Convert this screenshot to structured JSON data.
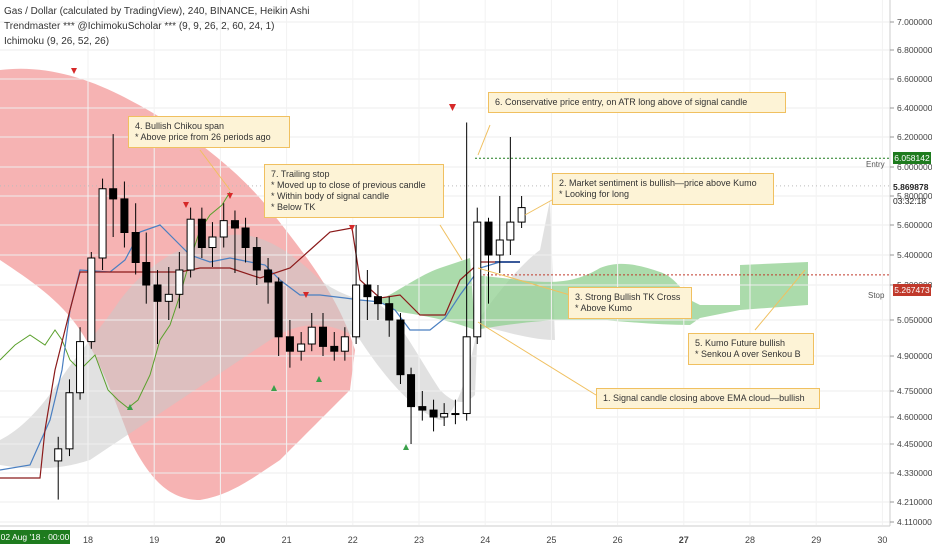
{
  "header": {
    "title": "Gas / Dollar (calculated by TradingView), 240, BINANCE, Heikin Ashi",
    "indicator1": "Trendmaster *** @IchimokuScholar *** (9, 9, 26, 2, 60, 24, 1)",
    "indicator2": "Ichimoku (9, 26, 52, 26)"
  },
  "price_axis": {
    "labels": [
      "7.000000",
      "6.800000",
      "6.600000",
      "6.400000",
      "6.200000",
      "6.000000",
      "5.800000",
      "5.600000",
      "5.400000",
      "5.200000",
      "5.050000",
      "4.900000",
      "4.750000",
      "4.600000",
      "4.450000",
      "4.330000",
      "4.210000",
      "4.110000"
    ],
    "entry_price": "6.058142",
    "current_price": "5.869878",
    "countdown": "03:32:18",
    "stop_price": "5.267473",
    "entry_label": "Entry",
    "stop_label": "Stop"
  },
  "time_axis": {
    "labels": [
      "18",
      "19",
      "20",
      "21",
      "22",
      "23",
      "24",
      "25",
      "26",
      "27",
      "28",
      "29",
      "30"
    ],
    "bold_labels": [
      "20",
      "27"
    ],
    "cursor_date": "02 Aug '18 · 00:00"
  },
  "annotations": [
    {
      "id": "note-1",
      "text": "1. Signal candle closing above EMA cloud—bullish"
    },
    {
      "id": "note-2",
      "text": "2. Market sentiment is bullish—price above Kumo\n* Looking for long"
    },
    {
      "id": "note-3",
      "text": "3. Strong Bullish TK Cross\n* Above Kumo"
    },
    {
      "id": "note-4",
      "text": "4. Bullish Chikou span\n* Above price from 26 periods ago"
    },
    {
      "id": "note-5",
      "text": "5. Kumo Future bullish\n* Senkou A over Senkou B"
    },
    {
      "id": "note-6",
      "text": "6. Conservative price entry, on ATR long above of signal candle"
    },
    {
      "id": "note-7",
      "text": "7. Trailing stop\n* Moved up to close of previous candle\n* Within body of signal candle\n* Below TK"
    }
  ],
  "colors": {
    "bull_candle": "#ffffff",
    "bear_candle": "#000000",
    "kumo_bear": "#f4a0a0",
    "kumo_bull": "#8fcf8f",
    "ema_cloud": "#c8c8c8",
    "tenkan": "#4a7fc1",
    "kijun": "#8b1a1a",
    "chikou": "#5aa02c",
    "entry_line": "#1e7b1e",
    "stop_line": "#c0392b",
    "note_bg": "#fdf3d6",
    "note_border": "#f0c060"
  },
  "chart_data": {
    "type": "candlestick",
    "title": "Gas / Dollar (calculated by TradingView), 240, BINANCE, Heikin Ashi",
    "x_unit": "day (Aug 2018)",
    "ylim": [
      4.11,
      7.0
    ],
    "candles": [
      {
        "x": 17.55,
        "o": 4.38,
        "h": 4.49,
        "l": 4.22,
        "c": 4.43
      },
      {
        "x": 17.72,
        "o": 4.43,
        "h": 4.8,
        "l": 4.4,
        "c": 4.74
      },
      {
        "x": 17.88,
        "o": 4.74,
        "h": 5.02,
        "l": 4.7,
        "c": 4.96
      },
      {
        "x": 18.05,
        "o": 4.96,
        "h": 5.42,
        "l": 4.93,
        "c": 5.38
      },
      {
        "x": 18.22,
        "o": 5.38,
        "h": 5.92,
        "l": 5.3,
        "c": 5.85
      },
      {
        "x": 18.38,
        "o": 5.85,
        "h": 6.22,
        "l": 5.52,
        "c": 5.78
      },
      {
        "x": 18.55,
        "o": 5.78,
        "h": 5.9,
        "l": 5.45,
        "c": 5.55
      },
      {
        "x": 18.72,
        "o": 5.55,
        "h": 5.75,
        "l": 5.27,
        "c": 5.35
      },
      {
        "x": 18.88,
        "o": 5.35,
        "h": 5.55,
        "l": 5.12,
        "c": 5.2
      },
      {
        "x": 19.05,
        "o": 5.2,
        "h": 5.3,
        "l": 4.95,
        "c": 5.13
      },
      {
        "x": 19.22,
        "o": 5.13,
        "h": 5.32,
        "l": 5.05,
        "c": 5.16
      },
      {
        "x": 19.38,
        "o": 5.16,
        "h": 5.42,
        "l": 5.1,
        "c": 5.3
      },
      {
        "x": 19.55,
        "o": 5.3,
        "h": 5.72,
        "l": 5.25,
        "c": 5.64
      },
      {
        "x": 19.72,
        "o": 5.64,
        "h": 5.72,
        "l": 5.38,
        "c": 5.45
      },
      {
        "x": 19.88,
        "o": 5.45,
        "h": 5.62,
        "l": 5.32,
        "c": 5.52
      },
      {
        "x": 20.05,
        "o": 5.52,
        "h": 5.75,
        "l": 5.45,
        "c": 5.63
      },
      {
        "x": 20.22,
        "o": 5.63,
        "h": 5.7,
        "l": 5.28,
        "c": 5.58
      },
      {
        "x": 20.38,
        "o": 5.58,
        "h": 5.65,
        "l": 5.35,
        "c": 5.45
      },
      {
        "x": 20.55,
        "o": 5.45,
        "h": 5.52,
        "l": 5.2,
        "c": 5.3
      },
      {
        "x": 20.72,
        "o": 5.3,
        "h": 5.38,
        "l": 5.12,
        "c": 5.22
      },
      {
        "x": 20.88,
        "o": 5.22,
        "h": 5.25,
        "l": 4.9,
        "c": 4.98
      },
      {
        "x": 21.05,
        "o": 4.98,
        "h": 5.05,
        "l": 4.85,
        "c": 4.92
      },
      {
        "x": 21.22,
        "o": 4.92,
        "h": 5.0,
        "l": 4.88,
        "c": 4.95
      },
      {
        "x": 21.38,
        "o": 4.95,
        "h": 5.08,
        "l": 4.92,
        "c": 5.02
      },
      {
        "x": 21.55,
        "o": 5.02,
        "h": 5.08,
        "l": 4.9,
        "c": 4.94
      },
      {
        "x": 21.72,
        "o": 4.94,
        "h": 5.0,
        "l": 4.88,
        "c": 4.92
      },
      {
        "x": 21.88,
        "o": 4.92,
        "h": 5.02,
        "l": 4.88,
        "c": 4.98
      },
      {
        "x": 22.05,
        "o": 4.98,
        "h": 5.6,
        "l": 4.95,
        "c": 5.2
      },
      {
        "x": 22.22,
        "o": 5.2,
        "h": 5.3,
        "l": 5.05,
        "c": 5.15
      },
      {
        "x": 22.38,
        "o": 5.15,
        "h": 5.2,
        "l": 5.05,
        "c": 5.12
      },
      {
        "x": 22.55,
        "o": 5.12,
        "h": 5.15,
        "l": 4.98,
        "c": 5.05
      },
      {
        "x": 22.72,
        "o": 5.05,
        "h": 5.08,
        "l": 4.78,
        "c": 4.82
      },
      {
        "x": 22.88,
        "o": 4.82,
        "h": 4.85,
        "l": 4.45,
        "c": 4.66
      },
      {
        "x": 23.05,
        "o": 4.66,
        "h": 4.75,
        "l": 4.58,
        "c": 4.64
      },
      {
        "x": 23.22,
        "o": 4.64,
        "h": 4.7,
        "l": 4.52,
        "c": 4.6
      },
      {
        "x": 23.38,
        "o": 4.6,
        "h": 4.68,
        "l": 4.55,
        "c": 4.62
      },
      {
        "x": 23.55,
        "o": 4.62,
        "h": 4.7,
        "l": 4.56,
        "c": 4.62
      },
      {
        "x": 23.72,
        "o": 4.62,
        "h": 6.3,
        "l": 4.58,
        "c": 4.98
      },
      {
        "x": 23.88,
        "o": 4.98,
        "h": 5.72,
        "l": 4.95,
        "c": 5.62
      },
      {
        "x": 24.05,
        "o": 5.62,
        "h": 5.65,
        "l": 5.12,
        "c": 5.4
      },
      {
        "x": 24.22,
        "o": 5.4,
        "h": 5.8,
        "l": 5.28,
        "c": 5.5
      },
      {
        "x": 24.38,
        "o": 5.5,
        "h": 6.2,
        "l": 5.4,
        "c": 5.62
      },
      {
        "x": 24.55,
        "o": 5.62,
        "h": 5.8,
        "l": 5.58,
        "c": 5.72
      }
    ],
    "levels": {
      "entry": 6.058142,
      "stop": 5.267473,
      "current": 5.869878
    }
  }
}
